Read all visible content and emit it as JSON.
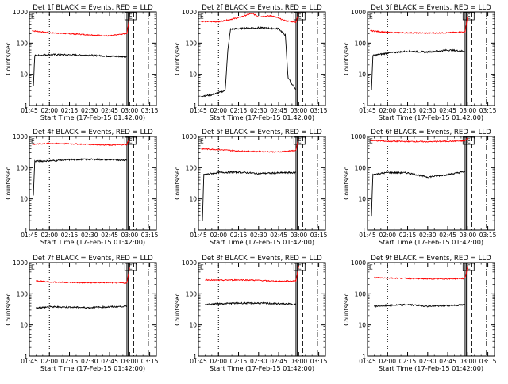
{
  "chart_data": {
    "type": "line",
    "layout": "3x3 grid",
    "ylabel": "Counts/sec",
    "xlabel": "Start Time (17-Feb-15 01:42:00)",
    "yscale": "log",
    "ylim": [
      1,
      1000
    ],
    "yticks": [
      1,
      10,
      100,
      1000
    ],
    "ytick_labels": [
      "1",
      "10",
      "100",
      "1000"
    ],
    "xlim": [
      "01:45",
      "03:20"
    ],
    "xticks": [
      "01:45",
      "02:00",
      "02:15",
      "02:30",
      "02:45",
      "03:00",
      "03:15"
    ],
    "colors": {
      "events": "#000000",
      "lld": "#ff0000"
    },
    "markers": {
      "dotted": "02:00",
      "solid": [
        "02:58",
        "02:59"
      ],
      "dashed": "03:03",
      "dashdot": "03:14",
      "flag_text": "E",
      "flag_time": "03:00"
    },
    "panels": [
      {
        "title": "Det 1f BLACK = Events, RED = LLD",
        "red": [
          [
            "01:47",
            250
          ],
          [
            "02:00",
            215
          ],
          [
            "02:15",
            200
          ],
          [
            "02:30",
            185
          ],
          [
            "02:45",
            170
          ],
          [
            "02:58",
            205
          ],
          [
            "03:00",
            700
          ]
        ],
        "black": [
          [
            "01:48",
            4
          ],
          [
            "01:49",
            40
          ],
          [
            "02:00",
            43
          ],
          [
            "02:15",
            42
          ],
          [
            "02:30",
            41
          ],
          [
            "02:45",
            38
          ],
          [
            "02:58",
            37
          ]
        ]
      },
      {
        "title": "Det 2f BLACK = Events, RED = LLD",
        "red": [
          [
            "01:47",
            500
          ],
          [
            "02:00",
            480
          ],
          [
            "02:15",
            650
          ],
          [
            "02:25",
            900
          ],
          [
            "02:30",
            700
          ],
          [
            "02:40",
            750
          ],
          [
            "02:50",
            520
          ],
          [
            "02:58",
            470
          ],
          [
            "03:00",
            900
          ]
        ],
        "black": [
          [
            "01:47",
            2
          ],
          [
            "01:55",
            2.2
          ],
          [
            "02:05",
            3
          ],
          [
            "02:07",
            60
          ],
          [
            "02:09",
            280
          ],
          [
            "02:20",
            300
          ],
          [
            "02:30",
            310
          ],
          [
            "02:45",
            290
          ],
          [
            "02:50",
            180
          ],
          [
            "02:52",
            8
          ],
          [
            "02:58",
            3
          ]
        ]
      },
      {
        "title": "Det 3f BLACK = Events, RED = LLD",
        "red": [
          [
            "01:47",
            250
          ],
          [
            "02:00",
            220
          ],
          [
            "02:15",
            215
          ],
          [
            "02:30",
            210
          ],
          [
            "02:45",
            215
          ],
          [
            "02:58",
            230
          ],
          [
            "03:00",
            800
          ]
        ],
        "black": [
          [
            "01:48",
            3
          ],
          [
            "01:49",
            40
          ],
          [
            "02:00",
            48
          ],
          [
            "02:15",
            55
          ],
          [
            "02:30",
            52
          ],
          [
            "02:45",
            60
          ],
          [
            "02:58",
            55
          ]
        ]
      },
      {
        "title": "Det 4f BLACK = Events, RED = LLD",
        "red": [
          [
            "01:47",
            560
          ],
          [
            "02:00",
            600
          ],
          [
            "02:15",
            580
          ],
          [
            "02:30",
            560
          ],
          [
            "02:45",
            530
          ],
          [
            "02:58",
            550
          ],
          [
            "03:00",
            900
          ]
        ],
        "black": [
          [
            "01:48",
            13
          ],
          [
            "01:49",
            160
          ],
          [
            "02:00",
            165
          ],
          [
            "02:15",
            180
          ],
          [
            "02:30",
            185
          ],
          [
            "02:45",
            180
          ],
          [
            "02:58",
            175
          ]
        ]
      },
      {
        "title": "Det 5f BLACK = Events, RED = LLD",
        "red": [
          [
            "01:47",
            400
          ],
          [
            "02:00",
            380
          ],
          [
            "02:15",
            340
          ],
          [
            "02:30",
            330
          ],
          [
            "02:45",
            320
          ],
          [
            "02:58",
            360
          ],
          [
            "03:00",
            900
          ]
        ],
        "black": [
          [
            "01:48",
            2
          ],
          [
            "01:49",
            60
          ],
          [
            "02:00",
            70
          ],
          [
            "02:15",
            72
          ],
          [
            "02:30",
            65
          ],
          [
            "02:45",
            68
          ],
          [
            "02:58",
            70
          ]
        ]
      },
      {
        "title": "Det 6f BLACK = Events, RED = LLD",
        "red": [
          [
            "01:47",
            750
          ],
          [
            "02:00",
            700
          ],
          [
            "02:15",
            690
          ],
          [
            "02:30",
            680
          ],
          [
            "02:45",
            700
          ],
          [
            "02:58",
            720
          ],
          [
            "03:00",
            900
          ]
        ],
        "black": [
          [
            "01:48",
            3
          ],
          [
            "01:49",
            60
          ],
          [
            "02:00",
            70
          ],
          [
            "02:15",
            68
          ],
          [
            "02:30",
            50
          ],
          [
            "02:45",
            60
          ],
          [
            "02:58",
            75
          ]
        ]
      },
      {
        "title": "Det 7f BLACK = Events, RED = LLD",
        "red": [
          [
            "01:50",
            260
          ],
          [
            "02:00",
            240
          ],
          [
            "02:15",
            230
          ],
          [
            "02:30",
            225
          ],
          [
            "02:45",
            230
          ],
          [
            "02:58",
            220
          ],
          [
            "03:00",
            700
          ]
        ],
        "black": [
          [
            "01:50",
            35
          ],
          [
            "02:00",
            38
          ],
          [
            "02:15",
            37
          ],
          [
            "02:30",
            36
          ],
          [
            "02:45",
            38
          ],
          [
            "02:58",
            40
          ]
        ]
      },
      {
        "title": "Det 8f BLACK = Events, RED = LLD",
        "red": [
          [
            "01:50",
            280
          ],
          [
            "02:00",
            270
          ],
          [
            "02:15",
            280
          ],
          [
            "02:30",
            270
          ],
          [
            "02:45",
            250
          ],
          [
            "02:58",
            260
          ],
          [
            "03:00",
            800
          ]
        ],
        "black": [
          [
            "01:50",
            45
          ],
          [
            "02:00",
            48
          ],
          [
            "02:15",
            50
          ],
          [
            "02:30",
            50
          ],
          [
            "02:45",
            48
          ],
          [
            "02:58",
            46
          ]
        ]
      },
      {
        "title": "Det 9f BLACK = Events, RED = LLD",
        "red": [
          [
            "01:50",
            330
          ],
          [
            "02:00",
            320
          ],
          [
            "02:15",
            310
          ],
          [
            "02:30",
            300
          ],
          [
            "02:45",
            300
          ],
          [
            "02:58",
            310
          ],
          [
            "03:00",
            800
          ]
        ],
        "black": [
          [
            "01:50",
            40
          ],
          [
            "02:00",
            42
          ],
          [
            "02:15",
            45
          ],
          [
            "02:30",
            40
          ],
          [
            "02:45",
            42
          ],
          [
            "02:58",
            44
          ]
        ]
      }
    ]
  }
}
